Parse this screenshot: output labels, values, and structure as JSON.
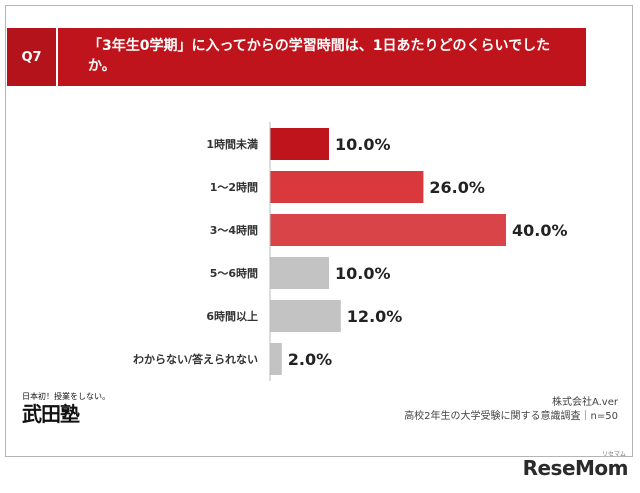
{
  "question": {
    "badge": "Q7",
    "text": "「3年生0学期」に入ってからの学習時間は、1日あたりどのくらいでしたか。"
  },
  "chart_data": {
    "type": "bar",
    "orientation": "horizontal",
    "categories": [
      "1時間未満",
      "1～2時間",
      "3～4時間",
      "5～6時間",
      "6時間以上",
      "わからない/答えられない"
    ],
    "values": [
      10.0,
      26.0,
      40.0,
      10.0,
      12.0,
      2.0
    ],
    "value_labels": [
      "10.0%",
      "26.0%",
      "40.0%",
      "10.0%",
      "12.0%",
      "2.0%"
    ],
    "colors": [
      "#c0141c",
      "#d9393c",
      "#d94448",
      "#c3c3c3",
      "#c3c3c3",
      "#c3c3c3"
    ],
    "xlim": [
      0,
      40
    ],
    "grid": false,
    "legend": "none"
  },
  "footer": {
    "company": "株式会社A.ver",
    "survey": "高校2年生の大学受験に関する意識調査｜n=50"
  },
  "logo": {
    "tagline": "日本初！授業をしない。",
    "name": "武田塾"
  },
  "watermark": {
    "brand": "ReseMom",
    "kana": "リセマム"
  }
}
